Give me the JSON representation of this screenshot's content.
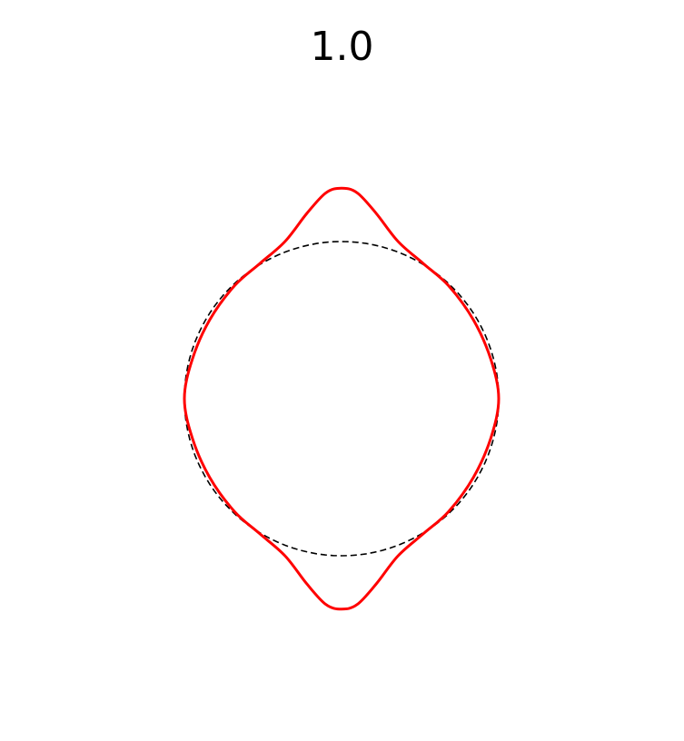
{
  "chart_data": {
    "type": "line",
    "title": "1.0",
    "xlabel": "",
    "ylabel": "",
    "axes_visible": false,
    "grid": false,
    "aspect": "equal",
    "xlim": [
      -1.1,
      1.1
    ],
    "ylim": [
      -1.55,
      1.55
    ],
    "series": [
      {
        "style": "dashed",
        "color": "#000000",
        "shape": "circle",
        "center": [
          0,
          0
        ],
        "radius": 1.0
      },
      {
        "style": "solid",
        "color": "#ff0000",
        "shape": "deformed-closed-curve",
        "x": [
          0.0,
          0.1,
          0.22,
          0.36,
          0.52,
          0.68,
          0.84,
          0.95,
          1.0,
          0.95,
          0.84,
          0.68,
          0.52,
          0.36,
          0.22,
          0.1,
          0.0,
          -0.1,
          -0.22,
          -0.36,
          -0.52,
          -0.68,
          -0.84,
          -0.95,
          -1.0,
          -0.95,
          -0.84,
          -0.68,
          -0.52,
          -0.36,
          -0.22,
          -0.1,
          0.0
        ],
        "y": [
          1.34,
          1.31,
          1.18,
          1.0,
          0.86,
          0.72,
          0.5,
          0.25,
          0.0,
          -0.25,
          -0.5,
          -0.72,
          -0.86,
          -1.0,
          -1.18,
          -1.31,
          -1.34,
          -1.31,
          -1.18,
          -1.0,
          -0.86,
          -0.72,
          -0.5,
          -0.25,
          0.0,
          0.25,
          0.5,
          0.72,
          0.86,
          1.0,
          1.18,
          1.31,
          1.34
        ]
      }
    ]
  }
}
